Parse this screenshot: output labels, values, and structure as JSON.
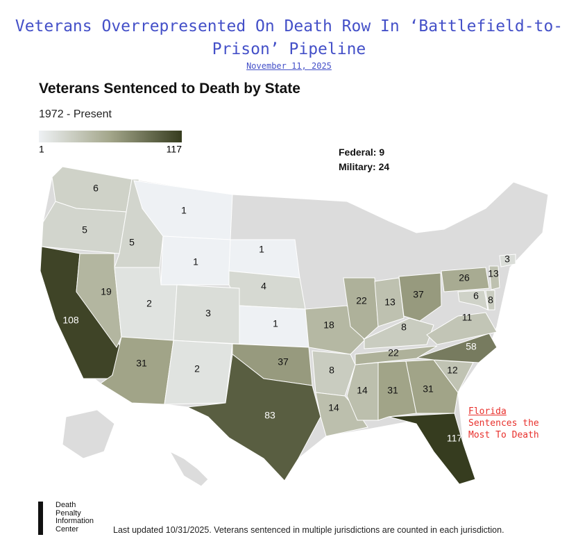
{
  "header": {
    "title": "Veterans Overrepresented On Death Row In ‘Battlefield-to-Prison’ Pipeline",
    "date": "November 11, 2025"
  },
  "chart_data": {
    "type": "choropleth",
    "title": "Veterans Sentenced to Death by State",
    "subtitle": "1972 - Present",
    "scale": {
      "min": 1,
      "max": 117,
      "type": "sqrt",
      "colors": [
        "#eef1f4",
        "#a3a68a",
        "#363c1f"
      ],
      "no_data_color": "#dcdcdc"
    },
    "notes": [
      "Federal: 9",
      "Military: 24"
    ],
    "values": [
      6,
      5,
      5,
      1,
      1,
      1,
      4,
      108,
      19,
      2,
      3,
      1,
      31,
      2,
      37,
      83,
      18,
      8,
      14,
      14,
      31,
      31,
      117,
      12,
      58,
      22,
      8,
      22,
      13,
      37,
      26,
      11,
      6,
      8,
      13,
      3
    ],
    "annotation": {
      "title": "Florida",
      "lines": [
        "Sentences the",
        "Most To Death"
      ]
    }
  },
  "footer": {
    "logo": [
      "Death",
      "Penalty",
      "Information",
      "Center"
    ],
    "note": "Last updated 10/31/2025. Veterans sentenced in multiple jurisdictions are counted in each jurisdiction."
  }
}
